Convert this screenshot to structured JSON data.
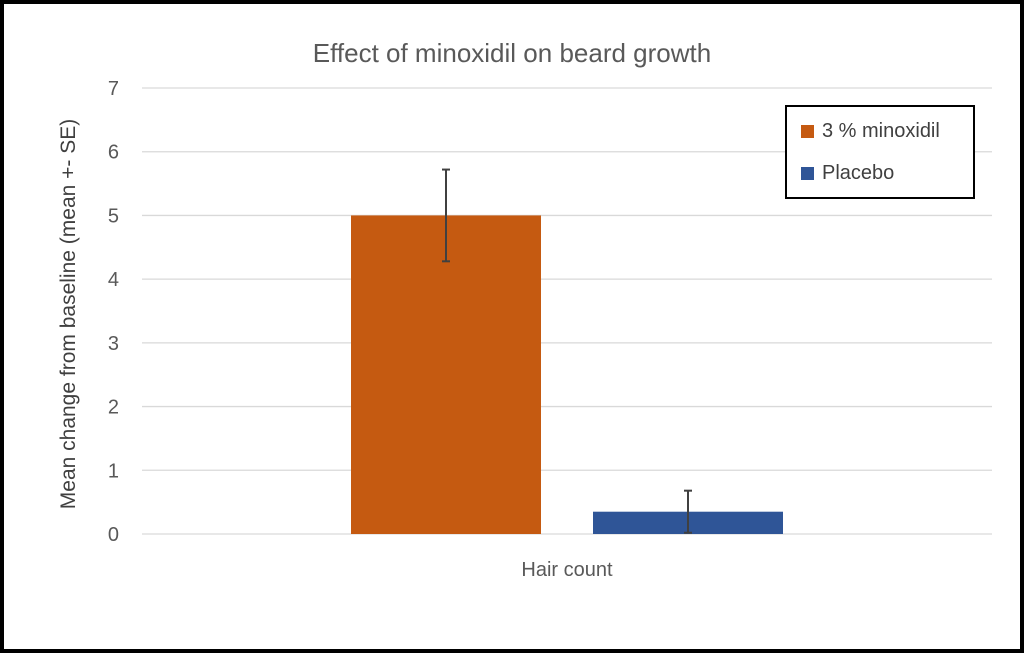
{
  "chart_data": {
    "type": "bar",
    "title": "Effect of minoxidil on beard growth",
    "xlabel": "",
    "ylabel": "Mean change from baseline (mean +- SE)",
    "categories": [
      "Hair count"
    ],
    "ylim": [
      0,
      7
    ],
    "yticks": [
      0,
      1,
      2,
      3,
      4,
      5,
      6,
      7
    ],
    "grid": true,
    "legend_position": "top-right",
    "series": [
      {
        "name": "3 % minoxidil",
        "color": "#C55A11",
        "values": [
          5.0
        ],
        "error": [
          0.72
        ]
      },
      {
        "name": "Placebo",
        "color": "#2F5597",
        "values": [
          0.35
        ],
        "error": [
          0.33
        ]
      }
    ]
  }
}
